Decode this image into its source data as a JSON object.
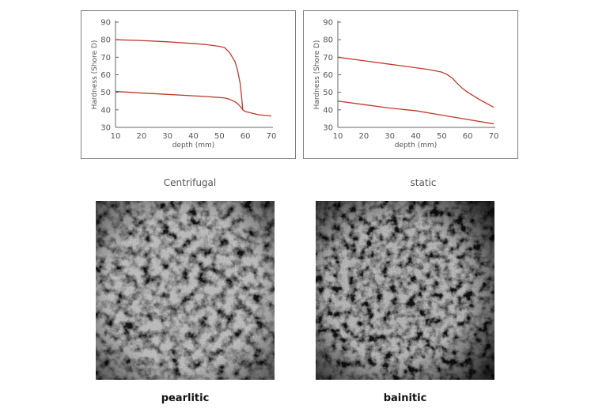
{
  "chart_data": [
    {
      "type": "line",
      "ylabel": "Hardness (Shore D)",
      "xlabel": "depth (mm)",
      "xlim": [
        10,
        70
      ],
      "ylim": [
        30,
        90
      ],
      "xticks": [
        10,
        20,
        30,
        40,
        50,
        60,
        70
      ],
      "yticks": [
        30,
        40,
        50,
        60,
        70,
        80,
        90
      ],
      "grid": false,
      "series": [
        {
          "x": [
            10,
            20,
            30,
            40,
            45,
            50,
            52,
            54,
            56,
            57,
            58,
            58.5,
            59,
            60,
            65,
            70
          ],
          "y": [
            80,
            79.5,
            78.8,
            77.8,
            77.2,
            76.2,
            75.5,
            72.5,
            67.5,
            62.5,
            55,
            48,
            40,
            39,
            37.2,
            36.5
          ]
        },
        {
          "x": [
            10,
            20,
            30,
            40,
            45,
            50,
            52,
            54,
            56,
            57,
            58,
            59
          ],
          "y": [
            50.5,
            49.6,
            48.8,
            48,
            47.6,
            47,
            46.8,
            46,
            44.6,
            43.5,
            42,
            40
          ]
        }
      ]
    },
    {
      "type": "line",
      "ylabel": "Hardness (Shore D)",
      "xlabel": "depth (mm)",
      "xlim": [
        10,
        70
      ],
      "ylim": [
        30,
        90
      ],
      "xticks": [
        10,
        20,
        30,
        40,
        50,
        60,
        70
      ],
      "yticks": [
        30,
        40,
        50,
        60,
        70,
        80,
        90
      ],
      "grid": false,
      "series": [
        {
          "x": [
            10,
            20,
            30,
            40,
            45,
            50,
            52,
            54,
            56,
            58,
            60,
            65,
            70
          ],
          "y": [
            70,
            68,
            66,
            64,
            63,
            61.5,
            60.2,
            58.2,
            55,
            52.2,
            50,
            45.5,
            41.5
          ]
        },
        {
          "x": [
            10,
            20,
            30,
            40,
            50,
            60,
            70
          ],
          "y": [
            45,
            43,
            41,
            39.5,
            37,
            34.5,
            32
          ]
        }
      ]
    }
  ],
  "captions": {
    "left": "Centrifugal",
    "right": "static"
  },
  "images": {
    "left_label": "pearlitic",
    "right_label": "bainitic"
  },
  "colors": {
    "curve": "#c0392b",
    "axis": "#666666",
    "text": "#555555"
  }
}
